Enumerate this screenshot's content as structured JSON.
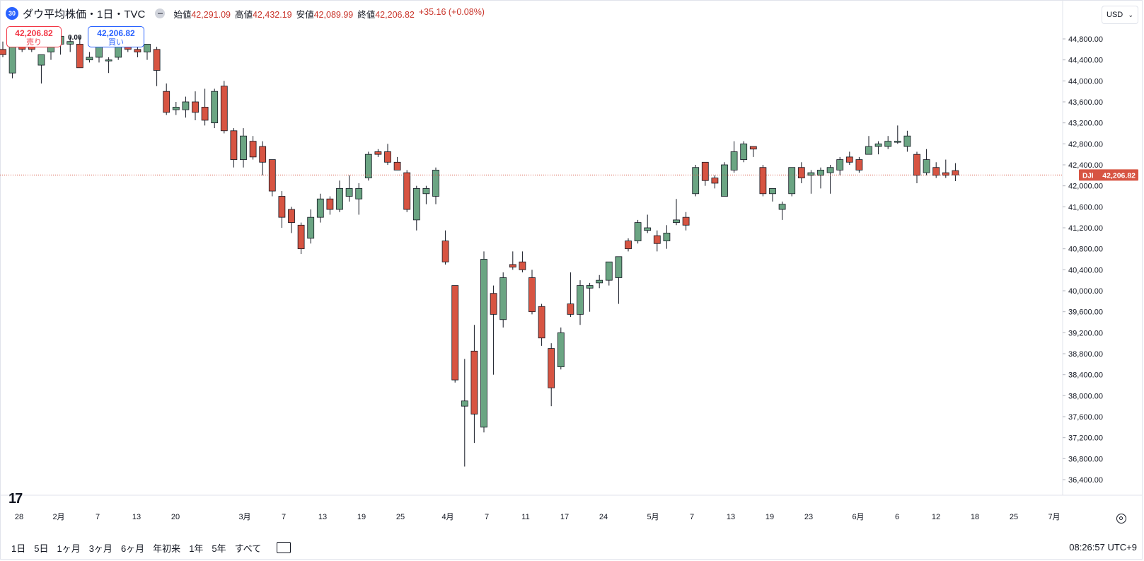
{
  "header": {
    "badge": "30",
    "title": "ダウ平均株価・1日・TVC",
    "open_label": "始値",
    "open": "42,291.09",
    "high_label": "高値",
    "high": "42,432.19",
    "low_label": "安値",
    "low": "42,089.99",
    "close_label": "終値",
    "close": "42,206.82",
    "change": "+35.16 (+0.08%)"
  },
  "trade": {
    "sell_price": "42,206.82",
    "sell_label": "売り",
    "buy_price": "42,206.82",
    "buy_label": "買い",
    "spread": "0.00"
  },
  "currency": "USD",
  "price_tag": {
    "symbol": "DJI",
    "value": "42,206.82"
  },
  "timeframes": [
    "1日",
    "5日",
    "1ヶ月",
    "3ヶ月",
    "6ヶ月",
    "年初来",
    "1年",
    "5年",
    "すべて"
  ],
  "clock": "08:26:57 UTC+9",
  "colors": {
    "up": "#6ba583",
    "down": "#d75442",
    "last_price": "#d75442"
  },
  "chart_data": {
    "type": "candlestick",
    "y_axis": {
      "min": 36200,
      "max": 45000,
      "ticks": [
        44800,
        44400,
        44000,
        43600,
        43200,
        42800,
        42400,
        42000,
        41600,
        41200,
        40800,
        40400,
        40000,
        39600,
        39200,
        38800,
        38400,
        38000,
        37600,
        37200,
        36800,
        36400
      ]
    },
    "y_tick_labels": [
      "44,800.00",
      "44,400.00",
      "44,000.00",
      "43,600.00",
      "43,200.00",
      "42,800.00",
      "42,400.00",
      "42,000.00",
      "41,600.00",
      "41,200.00",
      "40,800.00",
      "40,400.00",
      "40,000.00",
      "39,600.00",
      "39,200.00",
      "38,800.00",
      "38,400.00",
      "38,000.00",
      "37,600.00",
      "37,200.00",
      "36,800.00",
      "36,400.00"
    ],
    "x_tick_labels": [
      "28",
      "2月",
      "7",
      "13",
      "20",
      "3月",
      "7",
      "13",
      "19",
      "25",
      "4月",
      "7",
      "11",
      "17",
      "24",
      "5月",
      "7",
      "13",
      "19",
      "23",
      "6月",
      "6",
      "12",
      "18",
      "25",
      "7月"
    ],
    "last_price": 42206.82,
    "candles": [
      {
        "o": 44600,
        "h": 44750,
        "l": 44450,
        "c": 44500
      },
      {
        "o": 44150,
        "h": 44900,
        "l": 44050,
        "c": 44700
      },
      {
        "o": 44800,
        "h": 44900,
        "l": 44550,
        "c": 44600
      },
      {
        "o": 44700,
        "h": 44850,
        "l": 44550,
        "c": 44600
      },
      {
        "o": 44300,
        "h": 44500,
        "l": 43950,
        "c": 44500
      },
      {
        "o": 44550,
        "h": 44800,
        "l": 44400,
        "c": 44650
      },
      {
        "o": 44700,
        "h": 44900,
        "l": 44500,
        "c": 44850
      },
      {
        "o": 44700,
        "h": 44850,
        "l": 44550,
        "c": 44750
      },
      {
        "o": 44700,
        "h": 44850,
        "l": 44250,
        "c": 44250
      },
      {
        "o": 44400,
        "h": 44550,
        "l": 44350,
        "c": 44450
      },
      {
        "o": 44450,
        "h": 44700,
        "l": 44350,
        "c": 44650
      },
      {
        "o": 44400,
        "h": 44450,
        "l": 44150,
        "c": 44400
      },
      {
        "o": 44450,
        "h": 44750,
        "l": 44400,
        "c": 44700
      },
      {
        "o": 44800,
        "h": 44850,
        "l": 44550,
        "c": 44600
      },
      {
        "o": 44600,
        "h": 44650,
        "l": 44450,
        "c": 44550
      },
      {
        "o": 44550,
        "h": 44700,
        "l": 44400,
        "c": 44700
      },
      {
        "o": 44600,
        "h": 44650,
        "l": 43900,
        "c": 44200
      },
      {
        "o": 43800,
        "h": 43950,
        "l": 43350,
        "c": 43400
      },
      {
        "o": 43450,
        "h": 43600,
        "l": 43350,
        "c": 43500
      },
      {
        "o": 43450,
        "h": 43700,
        "l": 43300,
        "c": 43600
      },
      {
        "o": 43600,
        "h": 43800,
        "l": 43250,
        "c": 43400
      },
      {
        "o": 43500,
        "h": 43850,
        "l": 43150,
        "c": 43250
      },
      {
        "o": 43200,
        "h": 43850,
        "l": 43100,
        "c": 43800
      },
      {
        "o": 43900,
        "h": 44000,
        "l": 43000,
        "c": 43050
      },
      {
        "o": 43050,
        "h": 43100,
        "l": 42350,
        "c": 42500
      },
      {
        "o": 42500,
        "h": 43100,
        "l": 42350,
        "c": 42950
      },
      {
        "o": 42850,
        "h": 42950,
        "l": 42500,
        "c": 42550
      },
      {
        "o": 42750,
        "h": 42850,
        "l": 42200,
        "c": 42450
      },
      {
        "o": 42500,
        "h": 42500,
        "l": 41800,
        "c": 41900
      },
      {
        "o": 41800,
        "h": 41900,
        "l": 41200,
        "c": 41400
      },
      {
        "o": 41550,
        "h": 41600,
        "l": 41100,
        "c": 41300
      },
      {
        "o": 41250,
        "h": 41300,
        "l": 40700,
        "c": 40800
      },
      {
        "o": 41000,
        "h": 41550,
        "l": 40900,
        "c": 41400
      },
      {
        "o": 41400,
        "h": 41850,
        "l": 41300,
        "c": 41750
      },
      {
        "o": 41750,
        "h": 41800,
        "l": 41450,
        "c": 41550
      },
      {
        "o": 41550,
        "h": 42100,
        "l": 41500,
        "c": 41950
      },
      {
        "o": 41800,
        "h": 42200,
        "l": 41700,
        "c": 41950
      },
      {
        "o": 41750,
        "h": 42050,
        "l": 41450,
        "c": 41950
      },
      {
        "o": 42150,
        "h": 42650,
        "l": 42100,
        "c": 42600
      },
      {
        "o": 42650,
        "h": 42700,
        "l": 42550,
        "c": 42600
      },
      {
        "o": 42650,
        "h": 42800,
        "l": 42400,
        "c": 42450
      },
      {
        "o": 42450,
        "h": 42550,
        "l": 42300,
        "c": 42300
      },
      {
        "o": 42250,
        "h": 42300,
        "l": 41500,
        "c": 41550
      },
      {
        "o": 41350,
        "h": 42000,
        "l": 41150,
        "c": 41950
      },
      {
        "o": 41850,
        "h": 42000,
        "l": 41650,
        "c": 41950
      },
      {
        "o": 41800,
        "h": 42350,
        "l": 41650,
        "c": 42300
      },
      {
        "o": 40950,
        "h": 41150,
        "l": 40500,
        "c": 40550
      },
      {
        "o": 40100,
        "h": 40100,
        "l": 38250,
        "c": 38300
      },
      {
        "o": 37800,
        "h": 38700,
        "l": 36650,
        "c": 37900
      },
      {
        "o": 38850,
        "h": 39350,
        "l": 37100,
        "c": 37650
      },
      {
        "o": 37400,
        "h": 40750,
        "l": 37300,
        "c": 40600
      },
      {
        "o": 39950,
        "h": 40100,
        "l": 38400,
        "c": 39550
      },
      {
        "o": 39450,
        "h": 40350,
        "l": 39300,
        "c": 40250
      },
      {
        "o": 40500,
        "h": 40750,
        "l": 40400,
        "c": 40450
      },
      {
        "o": 40550,
        "h": 40750,
        "l": 40350,
        "c": 40400
      },
      {
        "o": 40250,
        "h": 40400,
        "l": 39550,
        "c": 39600
      },
      {
        "o": 39700,
        "h": 39750,
        "l": 38950,
        "c": 39100
      },
      {
        "o": 38900,
        "h": 39000,
        "l": 37800,
        "c": 38150
      },
      {
        "o": 38550,
        "h": 39300,
        "l": 38500,
        "c": 39200
      },
      {
        "o": 39750,
        "h": 40350,
        "l": 39500,
        "c": 39550
      },
      {
        "o": 39550,
        "h": 40200,
        "l": 39350,
        "c": 40100
      },
      {
        "o": 40050,
        "h": 40150,
        "l": 39600,
        "c": 40100
      },
      {
        "o": 40150,
        "h": 40300,
        "l": 40050,
        "c": 40200
      },
      {
        "o": 40200,
        "h": 40550,
        "l": 40100,
        "c": 40550
      },
      {
        "o": 40250,
        "h": 40650,
        "l": 39750,
        "c": 40650
      },
      {
        "o": 40950,
        "h": 41000,
        "l": 40750,
        "c": 40800
      },
      {
        "o": 40950,
        "h": 41350,
        "l": 40900,
        "c": 41300
      },
      {
        "o": 41150,
        "h": 41450,
        "l": 41100,
        "c": 41200
      },
      {
        "o": 41050,
        "h": 41150,
        "l": 40750,
        "c": 40900
      },
      {
        "o": 40950,
        "h": 41250,
        "l": 40800,
        "c": 41100
      },
      {
        "o": 41300,
        "h": 41750,
        "l": 41250,
        "c": 41350
      },
      {
        "o": 41400,
        "h": 41500,
        "l": 41150,
        "c": 41250
      },
      {
        "o": 41850,
        "h": 42400,
        "l": 41800,
        "c": 42350
      },
      {
        "o": 42450,
        "h": 42450,
        "l": 42000,
        "c": 42100
      },
      {
        "o": 42150,
        "h": 42200,
        "l": 41950,
        "c": 42050
      },
      {
        "o": 41800,
        "h": 42450,
        "l": 41800,
        "c": 42400
      },
      {
        "o": 42300,
        "h": 42850,
        "l": 42250,
        "c": 42650
      },
      {
        "o": 42500,
        "h": 42850,
        "l": 42450,
        "c": 42800
      },
      {
        "o": 42750,
        "h": 42750,
        "l": 42550,
        "c": 42700
      },
      {
        "o": 42350,
        "h": 42400,
        "l": 41800,
        "c": 41850
      },
      {
        "o": 41850,
        "h": 41950,
        "l": 41700,
        "c": 41950
      },
      {
        "o": 41550,
        "h": 41700,
        "l": 41350,
        "c": 41650
      },
      {
        "o": 41850,
        "h": 42350,
        "l": 41800,
        "c": 42350
      },
      {
        "o": 42350,
        "h": 42450,
        "l": 42050,
        "c": 42150
      },
      {
        "o": 42200,
        "h": 42300,
        "l": 41850,
        "c": 42250
      },
      {
        "o": 42200,
        "h": 42350,
        "l": 41950,
        "c": 42300
      },
      {
        "o": 42250,
        "h": 42400,
        "l": 41850,
        "c": 42350
      },
      {
        "o": 42300,
        "h": 42550,
        "l": 42200,
        "c": 42500
      },
      {
        "o": 42550,
        "h": 42650,
        "l": 42400,
        "c": 42450
      },
      {
        "o": 42500,
        "h": 42550,
        "l": 42250,
        "c": 42300
      },
      {
        "o": 42600,
        "h": 42950,
        "l": 42600,
        "c": 42750
      },
      {
        "o": 42750,
        "h": 42850,
        "l": 42600,
        "c": 42800
      },
      {
        "o": 42750,
        "h": 42950,
        "l": 42700,
        "c": 42850
      },
      {
        "o": 42850,
        "h": 43150,
        "l": 42800,
        "c": 42850
      },
      {
        "o": 42750,
        "h": 43050,
        "l": 42650,
        "c": 42950
      },
      {
        "o": 42600,
        "h": 42650,
        "l": 42050,
        "c": 42200
      },
      {
        "o": 42250,
        "h": 42700,
        "l": 42200,
        "c": 42500
      },
      {
        "o": 42350,
        "h": 42450,
        "l": 42150,
        "c": 42200
      },
      {
        "o": 42250,
        "h": 42500,
        "l": 42150,
        "c": 42200
      },
      {
        "o": 42290,
        "h": 42432,
        "l": 42090,
        "c": 42207
      }
    ]
  }
}
